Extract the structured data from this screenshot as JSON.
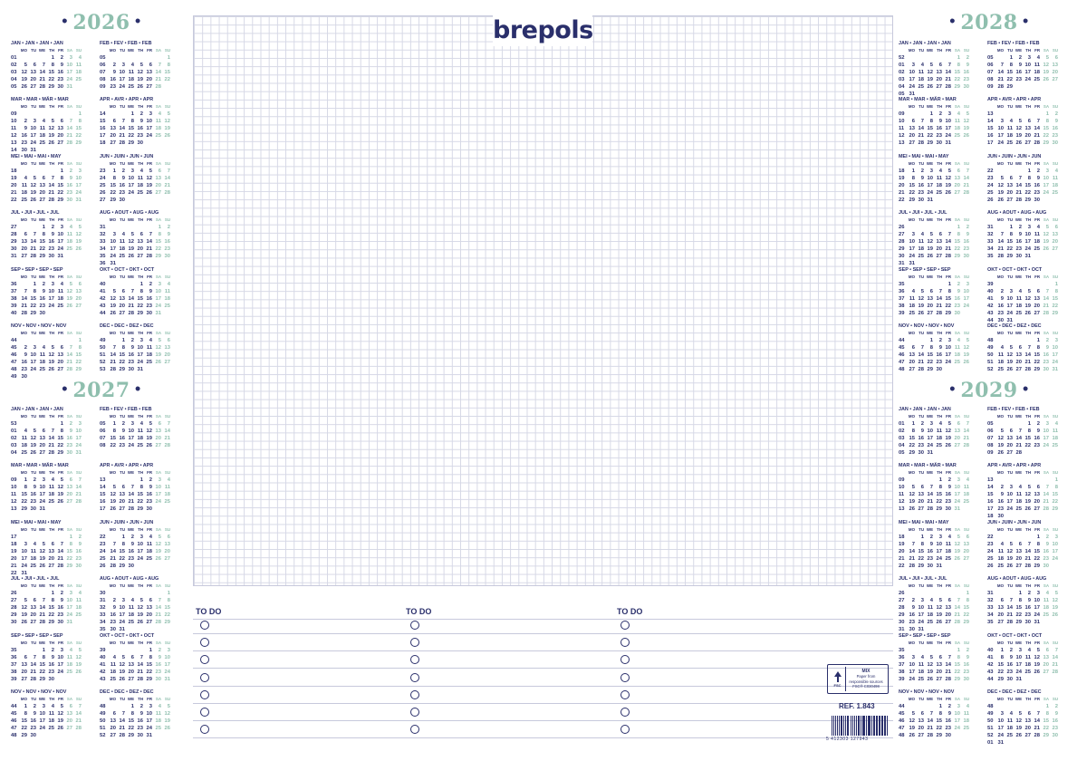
{
  "brand": "brepols",
  "day_headers": [
    "MO",
    "TU",
    "WE",
    "TH",
    "FR",
    "SA",
    "SU"
  ],
  "todo_label": "TO DO",
  "todo_rows": 7,
  "fsc": {
    "tag": "FSC",
    "mix": "MIX",
    "line1": "Paper from",
    "line2": "responsible sources",
    "code": "FSC® C030498"
  },
  "reference": "REF. 1.843",
  "barcode_number": "5   412303   127943",
  "colors": {
    "navy": "#2a2f6b",
    "weekend": "#8fbfae",
    "grid": "#d6d8e6"
  },
  "years": [
    2026,
    2027,
    2028,
    2029
  ],
  "month_names": [
    "JAN • JAN • JAN • JAN",
    "FEB • FEV • FEB • FEB",
    "MAR • MAR • MÄR • MAR",
    "APR • AVR • APR • APR",
    "MEI • MAI • MAI • MAY",
    "JUN • JUIN • JUN • JUN",
    "JUL • JUI • JUL • JUL",
    "AUG • AOUT • AUG • AUG",
    "SEP • SEP • SEP • SEP",
    "OKT • OCT • OKT • OCT",
    "NOV • NOV • NOV • NOV",
    "DEC • DEC • DEZ • DEC"
  ]
}
